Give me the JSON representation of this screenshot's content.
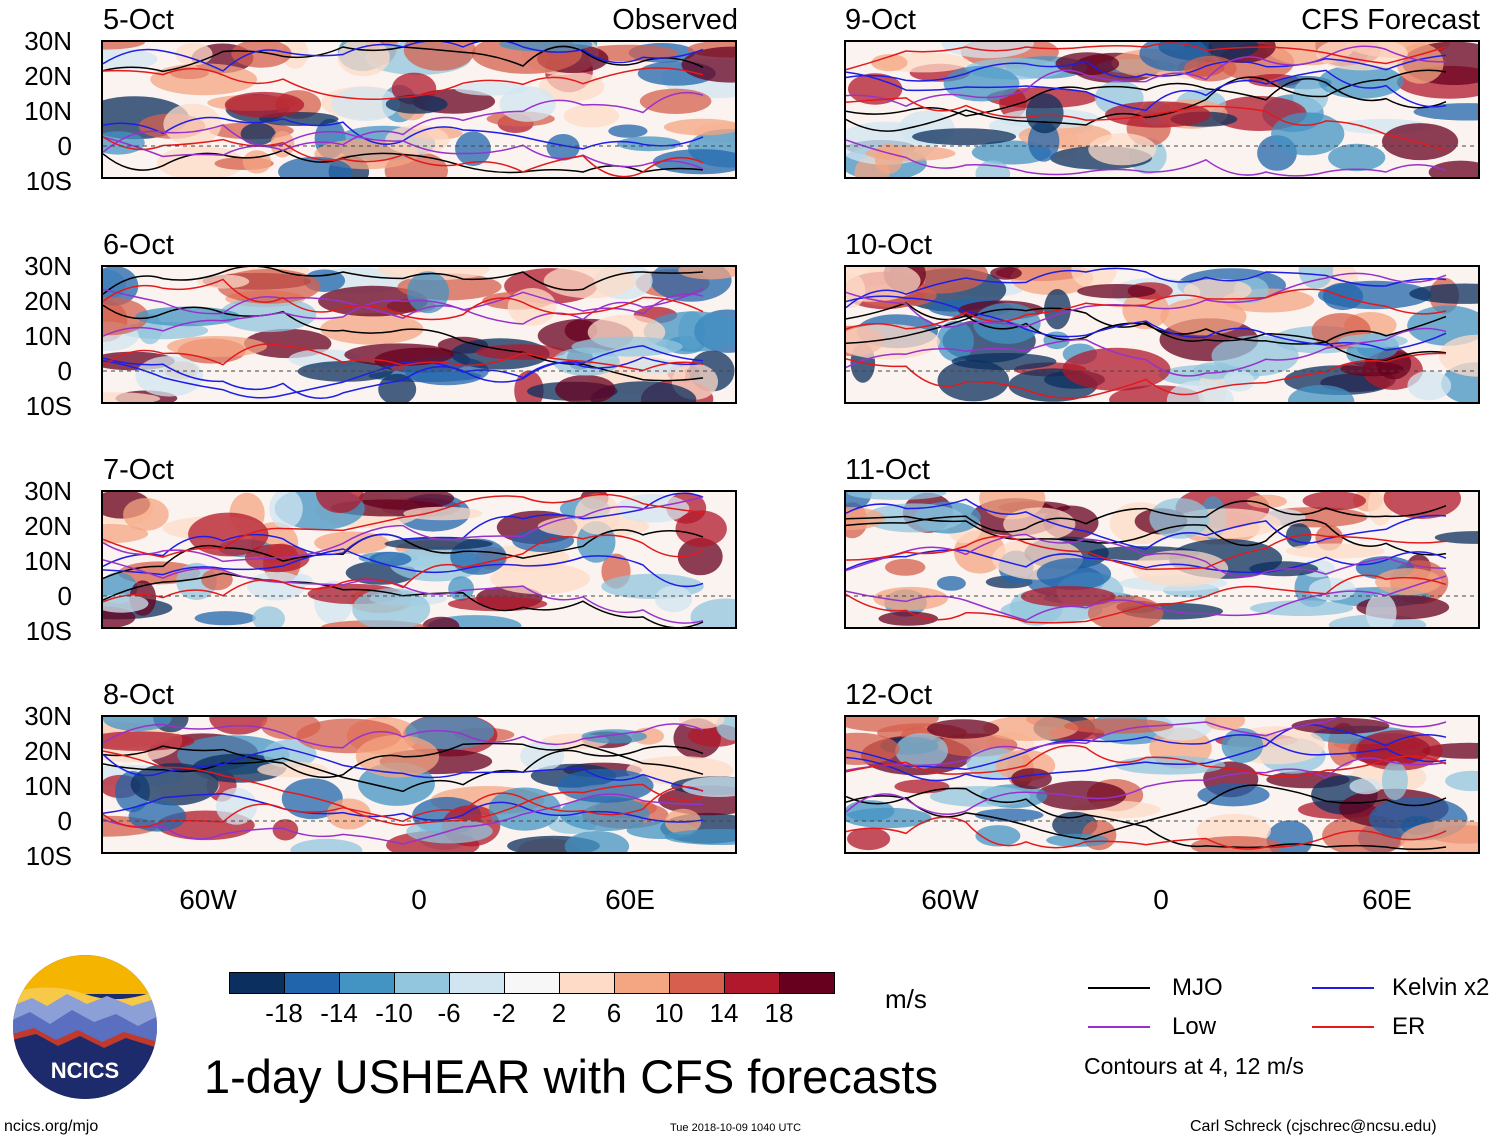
{
  "header": {
    "observed_label": "Observed",
    "forecast_label": "CFS Forecast"
  },
  "observed_panels": [
    {
      "date": "5-Oct"
    },
    {
      "date": "6-Oct"
    },
    {
      "date": "7-Oct"
    },
    {
      "date": "8-Oct"
    }
  ],
  "forecast_panels": [
    {
      "date": "9-Oct"
    },
    {
      "date": "10-Oct"
    },
    {
      "date": "11-Oct"
    },
    {
      "date": "12-Oct"
    }
  ],
  "lat_labels": [
    "30N",
    "20N",
    "10N",
    "0",
    "10S"
  ],
  "lon_labels": [
    "60W",
    "0",
    "60E"
  ],
  "colorbar": {
    "unit": "m/s",
    "ticks": [
      "-18",
      "-14",
      "-10",
      "-6",
      "-2",
      "2",
      "6",
      "10",
      "14",
      "18"
    ],
    "colors": [
      "#0b2f5e",
      "#2166ac",
      "#4393c3",
      "#92c5de",
      "#d1e5f0",
      "#f7f7f7",
      "#fddbc7",
      "#f4a582",
      "#d6604d",
      "#b2182b",
      "#67001f"
    ]
  },
  "legend": {
    "mjo": {
      "label": "MJO",
      "color": "#000000"
    },
    "kelvin": {
      "label": "Kelvin x2",
      "color": "#1e1ee6"
    },
    "low": {
      "label": "Low",
      "color": "#9932cc"
    },
    "er": {
      "label": "ER",
      "color": "#e31a1c"
    },
    "note": "Contours at 4, 12 m/s"
  },
  "footer": {
    "logo_text": "NCICS",
    "title": "1-day USHEAR with CFS forecasts",
    "url": "ncics.org/mjo",
    "timestamp": "Tue 2018-10-09 1040 UTC",
    "credit": "Carl Schreck (cjschrec@ncsu.edu)"
  }
}
